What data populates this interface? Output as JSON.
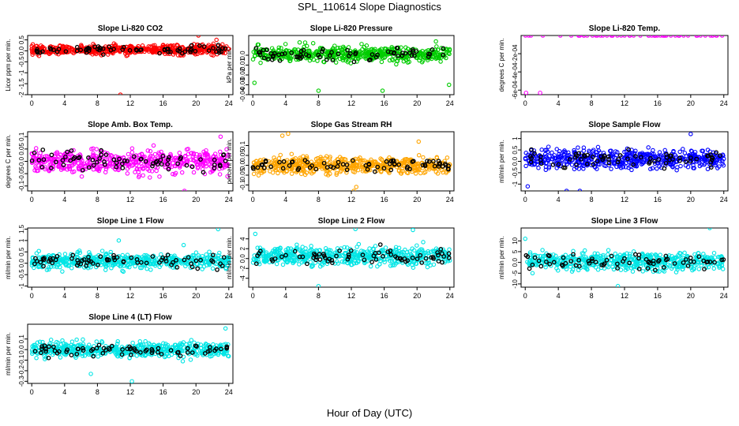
{
  "figure": {
    "title": "SPL_110614  Slope Diagnostics",
    "xlabel": "Hour of Day (UTC)"
  },
  "chart_data": [
    {
      "type": "scatter",
      "title": "Slope Li-820 CO2",
      "ylabel": "Licor ppm per min.",
      "xlim": [
        -0.5,
        24.5
      ],
      "ylim": [
        -2.0,
        0.7
      ],
      "yticks": [
        -2.0,
        -1.5,
        -1.0,
        -0.5,
        0.0,
        0.5
      ],
      "xticks": [
        0,
        4,
        8,
        12,
        16,
        20,
        24
      ],
      "color": "#ff0000",
      "grid": false,
      "series": [
        {
          "points": [
            [
              10.8,
              -2.0
            ],
            [
              20.3,
              0.7
            ],
            [
              22.5,
              0.5
            ]
          ],
          "note_only": false
        }
      ],
      "band_center": 0.05,
      "band_spread": 0.22
    },
    {
      "type": "scatter",
      "title": "Slope Li-820 Pressure",
      "ylabel": "kPa per min.",
      "xlim": [
        -0.5,
        24.5
      ],
      "ylim": [
        -0.04,
        0.02
      ],
      "yticks": [
        -0.04,
        -0.03,
        -0.02,
        -0.01,
        0.0
      ],
      "xticks": [
        0,
        4,
        8,
        12,
        16,
        20,
        24
      ],
      "color": "#00cc00",
      "grid": false,
      "series": [
        {
          "points": [
            [
              0.2,
              -0.028
            ],
            [
              8.0,
              -0.036
            ],
            [
              15.8,
              -0.036
            ],
            [
              23.9,
              -0.03
            ],
            [
              5.7,
              0.013
            ],
            [
              22.3,
              0.014
            ]
          ]
        }
      ],
      "band_center": 0.001,
      "band_spread": 0.008
    },
    {
      "type": "scatter",
      "title": "Slope Li-820 Temp.",
      "ylabel": "degrees C per min.",
      "xlim": [
        -0.5,
        24.5
      ],
      "ylim": [
        -0.00065,
        0.0
      ],
      "yticks": [
        -0.0006,
        -0.0004,
        -0.0002
      ],
      "xticks": [
        0,
        4,
        8,
        12,
        16,
        20,
        24
      ],
      "color": "#ff00ff",
      "grid": false,
      "series": [
        {
          "points": [
            [
              0.1,
              -0.00063
            ],
            [
              1.8,
              -0.00063
            ]
          ]
        }
      ],
      "band_center": 0.0,
      "band_spread": 0.0
    },
    {
      "type": "scatter",
      "title": "Slope Amb. Box Temp.",
      "ylabel": "degrees C per min.",
      "xlim": [
        -0.5,
        24.5
      ],
      "ylim": [
        -0.12,
        0.12
      ],
      "yticks": [
        -0.1,
        -0.05,
        0.0,
        0.05,
        0.1
      ],
      "xticks": [
        0,
        4,
        8,
        12,
        16,
        20,
        24
      ],
      "color": "#ff00ff",
      "grid": false,
      "series": [
        {
          "points": [
            [
              18.6,
              -0.12
            ],
            [
              23.0,
              0.1
            ]
          ]
        }
      ],
      "band_center": 0.0,
      "band_spread": 0.05
    },
    {
      "type": "scatter",
      "title": "Slope Gas Stream RH",
      "ylabel": "percent per min.",
      "xlim": [
        -0.5,
        24.5
      ],
      "ylim": [
        -0.13,
        0.17
      ],
      "yticks": [
        -0.1,
        -0.05,
        0.0,
        0.05,
        0.1
      ],
      "xticks": [
        0,
        4,
        8,
        12,
        16,
        20,
        24
      ],
      "color": "#ffa500",
      "grid": false,
      "series": [
        {
          "points": [
            [
              12.3,
              -0.13
            ],
            [
              12.6,
              -0.11
            ],
            [
              20.2,
              0.12
            ],
            [
              3.6,
              0.15
            ],
            [
              4.3,
              0.16
            ]
          ]
        }
      ],
      "band_center": 0.0,
      "band_spread": 0.045
    },
    {
      "type": "scatter",
      "title": "Slope Sample Flow",
      "ylabel": "ml/min per min.",
      "xlim": [
        -0.5,
        24.5
      ],
      "ylim": [
        -1.3,
        1.3
      ],
      "yticks": [
        -1.0,
        -0.5,
        0.0,
        0.5,
        1.0
      ],
      "xticks": [
        0,
        4,
        8,
        12,
        16,
        20,
        24
      ],
      "color": "#0000ff",
      "grid": false,
      "series": [
        {
          "points": [
            [
              5.0,
              -1.3
            ],
            [
              6.6,
              -1.3
            ],
            [
              0.3,
              -1.1
            ],
            [
              20.0,
              1.2
            ]
          ]
        }
      ],
      "band_center": 0.1,
      "band_spread": 0.45
    },
    {
      "type": "scatter",
      "title": "Slope Line 1 Flow",
      "ylabel": "ml/min per min.",
      "xlim": [
        -0.5,
        24.5
      ],
      "ylim": [
        -1.05,
        1.55
      ],
      "yticks": [
        -1.0,
        -0.5,
        0.0,
        0.5,
        1.0,
        1.5
      ],
      "xticks": [
        0,
        4,
        8,
        12,
        16,
        20,
        24
      ],
      "color": "#00e5e5",
      "grid": false,
      "series": [
        {
          "points": [
            [
              22.7,
              1.5
            ],
            [
              10.6,
              1.0
            ],
            [
              18.5,
              0.8
            ]
          ]
        }
      ],
      "band_center": 0.1,
      "band_spread": 0.35
    },
    {
      "type": "scatter",
      "title": "Slope Line 2 Flow",
      "ylabel": "ml/min per min.",
      "xlim": [
        -0.5,
        24.5
      ],
      "ylim": [
        -5.8,
        6.2
      ],
      "yticks": [
        -4,
        -2,
        0,
        2,
        4
      ],
      "xticks": [
        0,
        4,
        8,
        12,
        16,
        20,
        24
      ],
      "color": "#00e5e5",
      "grid": false,
      "series": [
        {
          "points": [
            [
              12.5,
              6.0
            ],
            [
              19.5,
              5.8
            ],
            [
              8.0,
              -5.6
            ],
            [
              0.3,
              5.0
            ]
          ]
        }
      ],
      "band_center": 0.5,
      "band_spread": 2.0
    },
    {
      "type": "scatter",
      "title": "Slope Line 3 Flow",
      "ylabel": "ml/min per min.",
      "xlim": [
        -0.5,
        24.5
      ],
      "ylim": [
        -11.5,
        16.0
      ],
      "yticks": [
        -10,
        -5,
        0,
        5,
        10
      ],
      "xticks": [
        0,
        4,
        8,
        12,
        16,
        20,
        24
      ],
      "color": "#00e5e5",
      "grid": false,
      "series": [
        {
          "points": [
            [
              22.3,
              16.0
            ],
            [
              11.2,
              -11.0
            ],
            [
              0.0,
              11.0
            ]
          ]
        }
      ],
      "band_center": 0.5,
      "band_spread": 4.5
    },
    {
      "type": "scatter",
      "title": "Slope Line 4 (LT) Flow",
      "ylabel": "ml/min per min.",
      "xlim": [
        -0.5,
        24.5
      ],
      "ylim": [
        -0.32,
        0.24
      ],
      "yticks": [
        -0.3,
        -0.2,
        -0.1,
        0.0,
        0.1
      ],
      "xticks": [
        0,
        4,
        8,
        12,
        16,
        20,
        24
      ],
      "color": "#00e5e5",
      "grid": false,
      "series": [
        {
          "points": [
            [
              12.2,
              -0.3
            ],
            [
              23.6,
              0.2
            ],
            [
              7.2,
              -0.23
            ]
          ]
        }
      ],
      "band_center": 0.0,
      "band_spread": 0.075
    }
  ]
}
